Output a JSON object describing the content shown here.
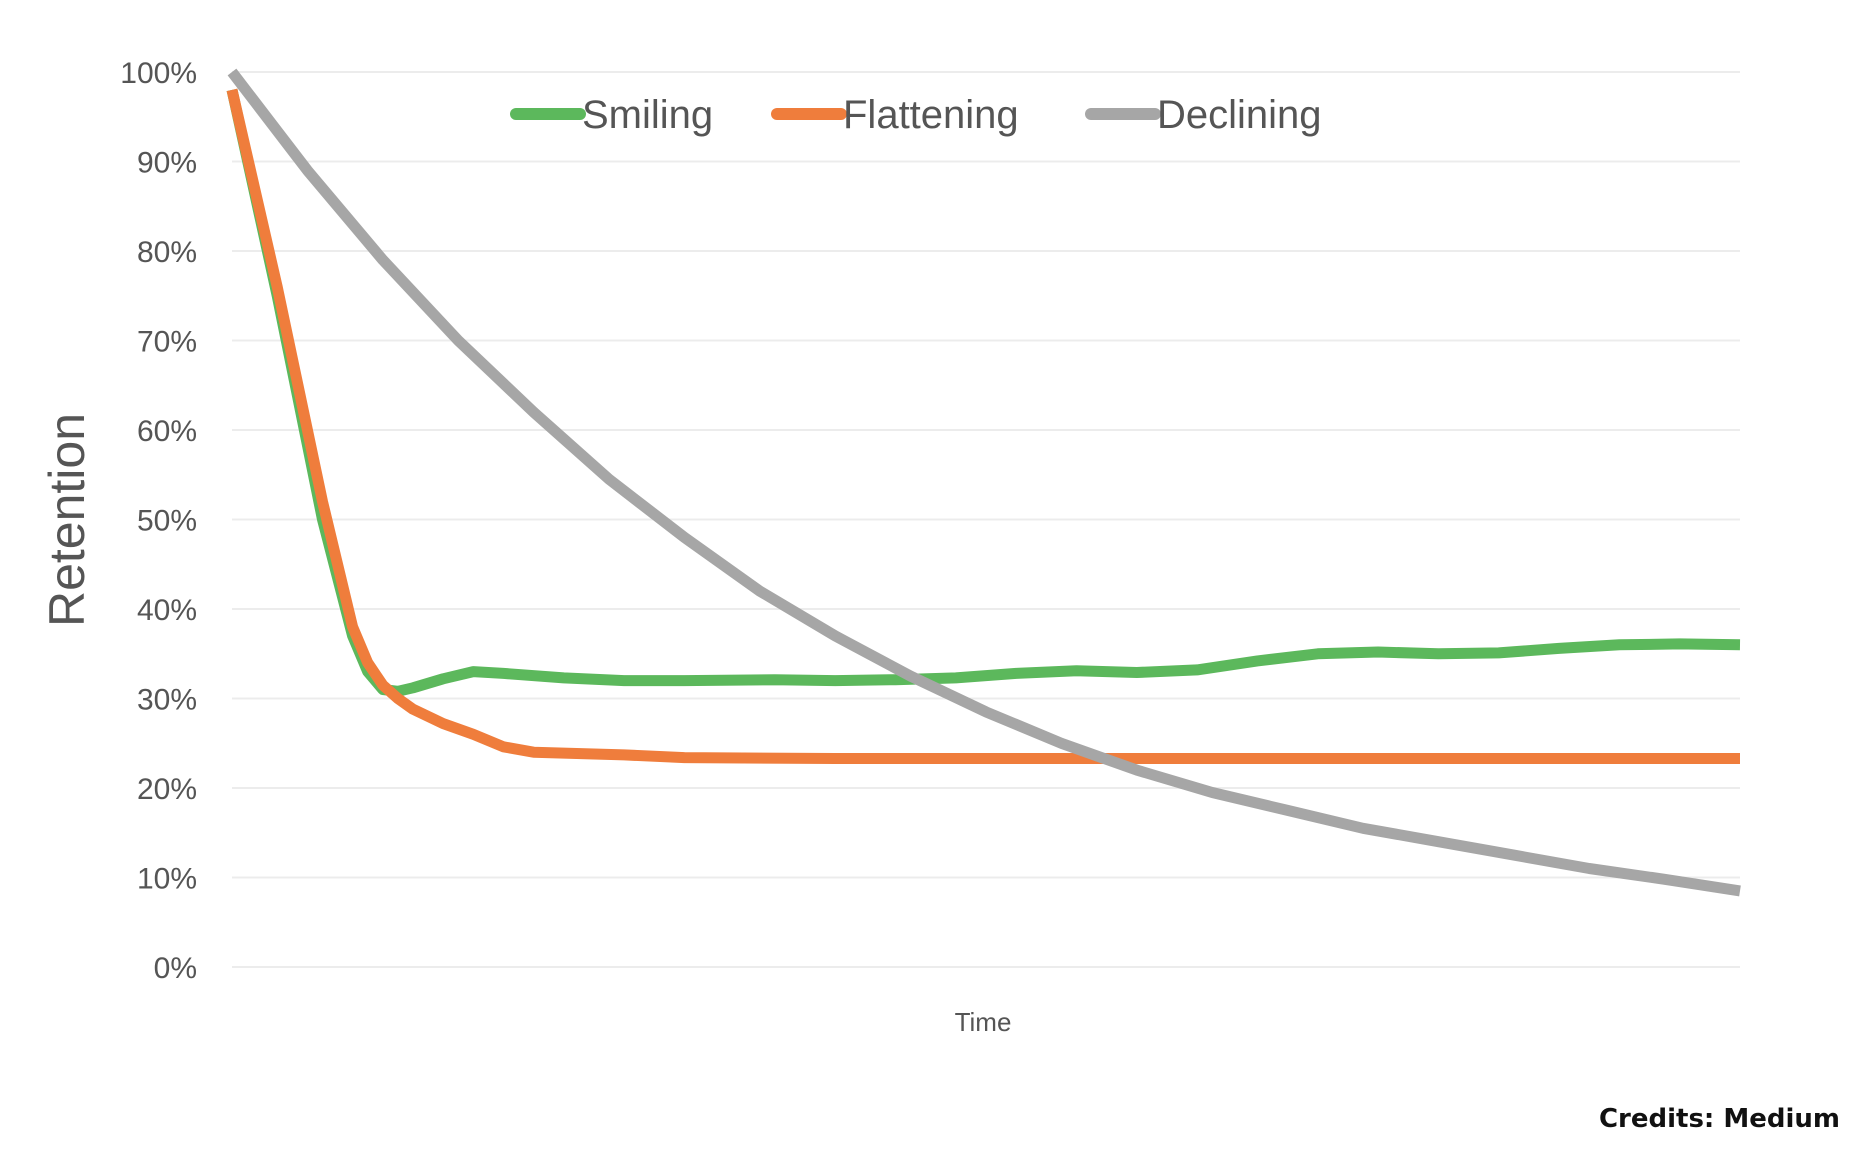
{
  "chart_data": {
    "type": "line",
    "title": "",
    "xlabel": "Time",
    "ylabel": "Retention",
    "ylim": [
      0,
      100
    ],
    "xlim": [
      0,
      100
    ],
    "yticks": [
      "0%",
      "10%",
      "20%",
      "30%",
      "40%",
      "50%",
      "60%",
      "70%",
      "80%",
      "90%",
      "100%"
    ],
    "grid": true,
    "legend_position": "top-center",
    "series": [
      {
        "name": "Smiling",
        "color": "#5cb85c",
        "points": [
          [
            0,
            98
          ],
          [
            3,
            75
          ],
          [
            6,
            50
          ],
          [
            8,
            37
          ],
          [
            9,
            33
          ],
          [
            10,
            31
          ],
          [
            11,
            30.8
          ],
          [
            12,
            31.2
          ],
          [
            14,
            32.2
          ],
          [
            16,
            33
          ],
          [
            18,
            32.8
          ],
          [
            22,
            32.3
          ],
          [
            26,
            32
          ],
          [
            30,
            32
          ],
          [
            36,
            32.1
          ],
          [
            40,
            32
          ],
          [
            44,
            32.1
          ],
          [
            48,
            32.3
          ],
          [
            52,
            32.8
          ],
          [
            56,
            33.1
          ],
          [
            60,
            32.9
          ],
          [
            64,
            33.2
          ],
          [
            68,
            34.2
          ],
          [
            72,
            35
          ],
          [
            76,
            35.2
          ],
          [
            80,
            35
          ],
          [
            84,
            35.1
          ],
          [
            88,
            35.6
          ],
          [
            92,
            36
          ],
          [
            96,
            36.1
          ],
          [
            100,
            36
          ]
        ]
      },
      {
        "name": "Flattening",
        "color": "#ef7d3c",
        "points": [
          [
            0,
            98
          ],
          [
            3,
            76
          ],
          [
            6,
            52
          ],
          [
            8,
            38
          ],
          [
            9,
            34
          ],
          [
            10,
            31.5
          ],
          [
            11,
            30
          ],
          [
            12,
            28.8
          ],
          [
            14,
            27.2
          ],
          [
            16,
            26
          ],
          [
            18,
            24.6
          ],
          [
            20,
            24
          ],
          [
            26,
            23.7
          ],
          [
            30,
            23.4
          ],
          [
            40,
            23.3
          ],
          [
            60,
            23.3
          ],
          [
            80,
            23.3
          ],
          [
            100,
            23.3
          ]
        ]
      },
      {
        "name": "Declining",
        "color": "#a6a6a6",
        "points": [
          [
            0,
            100
          ],
          [
            5,
            89
          ],
          [
            10,
            79
          ],
          [
            15,
            70
          ],
          [
            20,
            62
          ],
          [
            25,
            54.5
          ],
          [
            30,
            48
          ],
          [
            35,
            42
          ],
          [
            40,
            37
          ],
          [
            45,
            32.5
          ],
          [
            50,
            28.5
          ],
          [
            55,
            25
          ],
          [
            60,
            22
          ],
          [
            65,
            19.5
          ],
          [
            70,
            17.5
          ],
          [
            75,
            15.5
          ],
          [
            80,
            14
          ],
          [
            85,
            12.5
          ],
          [
            90,
            11
          ],
          [
            95,
            9.8
          ],
          [
            100,
            8.5
          ]
        ]
      }
    ]
  },
  "credits": "Credits: Medium"
}
